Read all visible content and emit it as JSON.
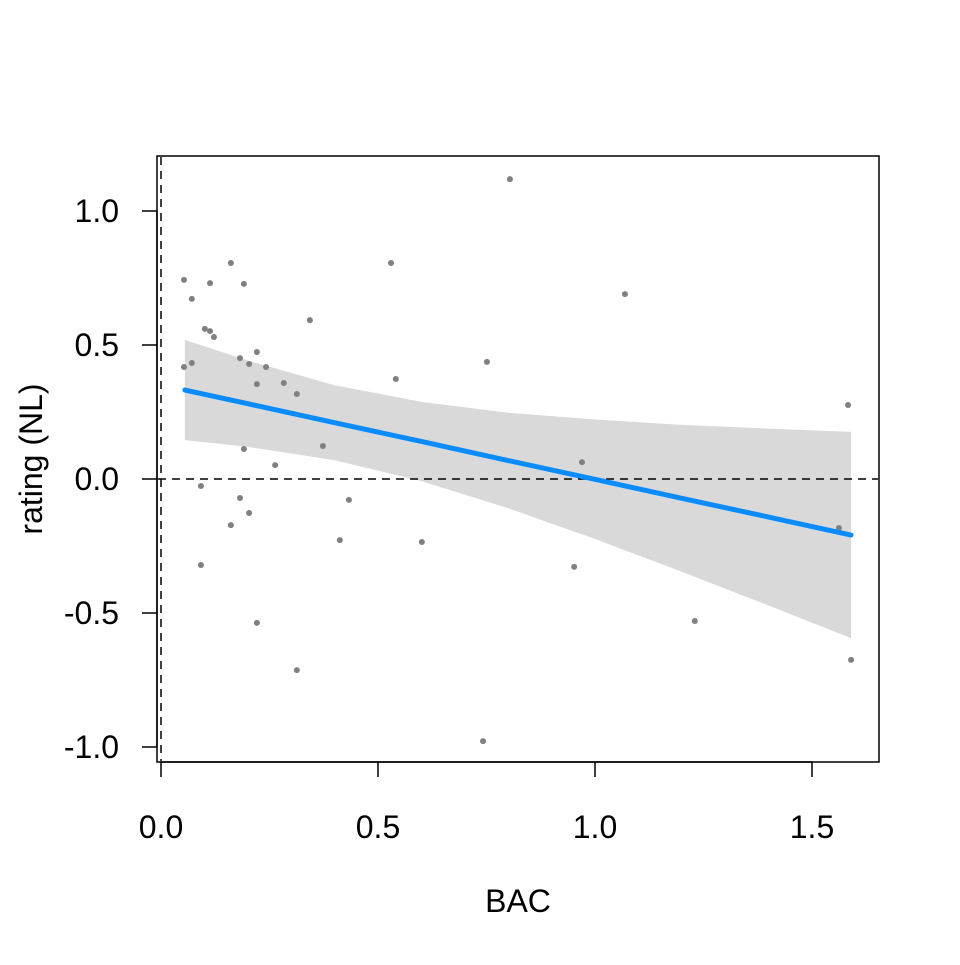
{
  "chart_data": {
    "type": "scatter",
    "title": "",
    "xlabel": "BAC",
    "ylabel": "rating (NL)",
    "xlim": [
      -0.01,
      1.65
    ],
    "ylim": [
      -1.05,
      1.2
    ],
    "xticks": [
      0.0,
      0.5,
      1.0,
      1.5
    ],
    "xtick_labels": [
      "0.0",
      "0.5",
      "1.0",
      "1.5"
    ],
    "yticks": [
      -1.0,
      -0.5,
      0.0,
      0.5,
      1.0
    ],
    "ytick_labels": [
      "-1.0",
      "-0.5",
      "0.0",
      "0.5",
      "1.0"
    ],
    "grid": false,
    "reference_lines": {
      "vertical_x": 0,
      "horizontal_y": 0,
      "style": "dashed"
    },
    "colors": {
      "points": "#808080",
      "fit_line": "#0a8cff",
      "band": "#d9d9d9",
      "reference": "#000000"
    },
    "points": [
      [
        0.161,
        0.806
      ],
      [
        0.053,
        0.743
      ],
      [
        0.113,
        0.731
      ],
      [
        0.191,
        0.728
      ],
      [
        0.071,
        0.672
      ],
      [
        0.343,
        0.593
      ],
      [
        0.101,
        0.56
      ],
      [
        0.113,
        0.552
      ],
      [
        0.122,
        0.53
      ],
      [
        0.221,
        0.474
      ],
      [
        0.182,
        0.451
      ],
      [
        0.053,
        0.418
      ],
      [
        0.071,
        0.433
      ],
      [
        0.203,
        0.429
      ],
      [
        0.242,
        0.418
      ],
      [
        0.221,
        0.354
      ],
      [
        0.283,
        0.358
      ],
      [
        0.313,
        0.317
      ],
      [
        0.373,
        0.123
      ],
      [
        0.191,
        0.112
      ],
      [
        0.263,
        0.052
      ],
      [
        0.092,
        -0.026
      ],
      [
        0.182,
        -0.071
      ],
      [
        0.433,
        -0.078
      ],
      [
        0.203,
        -0.127
      ],
      [
        0.161,
        -0.172
      ],
      [
        0.412,
        -0.228
      ],
      [
        0.092,
        -0.321
      ],
      [
        0.221,
        -0.537
      ],
      [
        0.313,
        -0.713
      ],
      [
        0.804,
        1.119
      ],
      [
        0.53,
        0.806
      ],
      [
        1.069,
        0.69
      ],
      [
        0.751,
        0.437
      ],
      [
        0.541,
        0.373
      ],
      [
        1.583,
        0.276
      ],
      [
        0.97,
        0.063
      ],
      [
        1.562,
        -0.183
      ],
      [
        0.601,
        -0.235
      ],
      [
        0.952,
        -0.328
      ],
      [
        1.23,
        -0.53
      ],
      [
        1.59,
        -0.675
      ],
      [
        0.742,
        -0.978
      ]
    ],
    "fit": {
      "x": [
        0.055,
        0.2,
        0.4,
        0.6,
        0.8,
        1.0,
        1.2,
        1.4,
        1.59
      ],
      "y": [
        0.332,
        0.281,
        0.21,
        0.14,
        0.069,
        -0.001,
        -0.072,
        -0.142,
        -0.209
      ],
      "upper": [
        0.519,
        0.442,
        0.35,
        0.288,
        0.247,
        0.222,
        0.202,
        0.188,
        0.176
      ],
      "lower": [
        0.145,
        0.12,
        0.07,
        -0.008,
        -0.109,
        -0.224,
        -0.346,
        -0.472,
        -0.594
      ]
    }
  }
}
